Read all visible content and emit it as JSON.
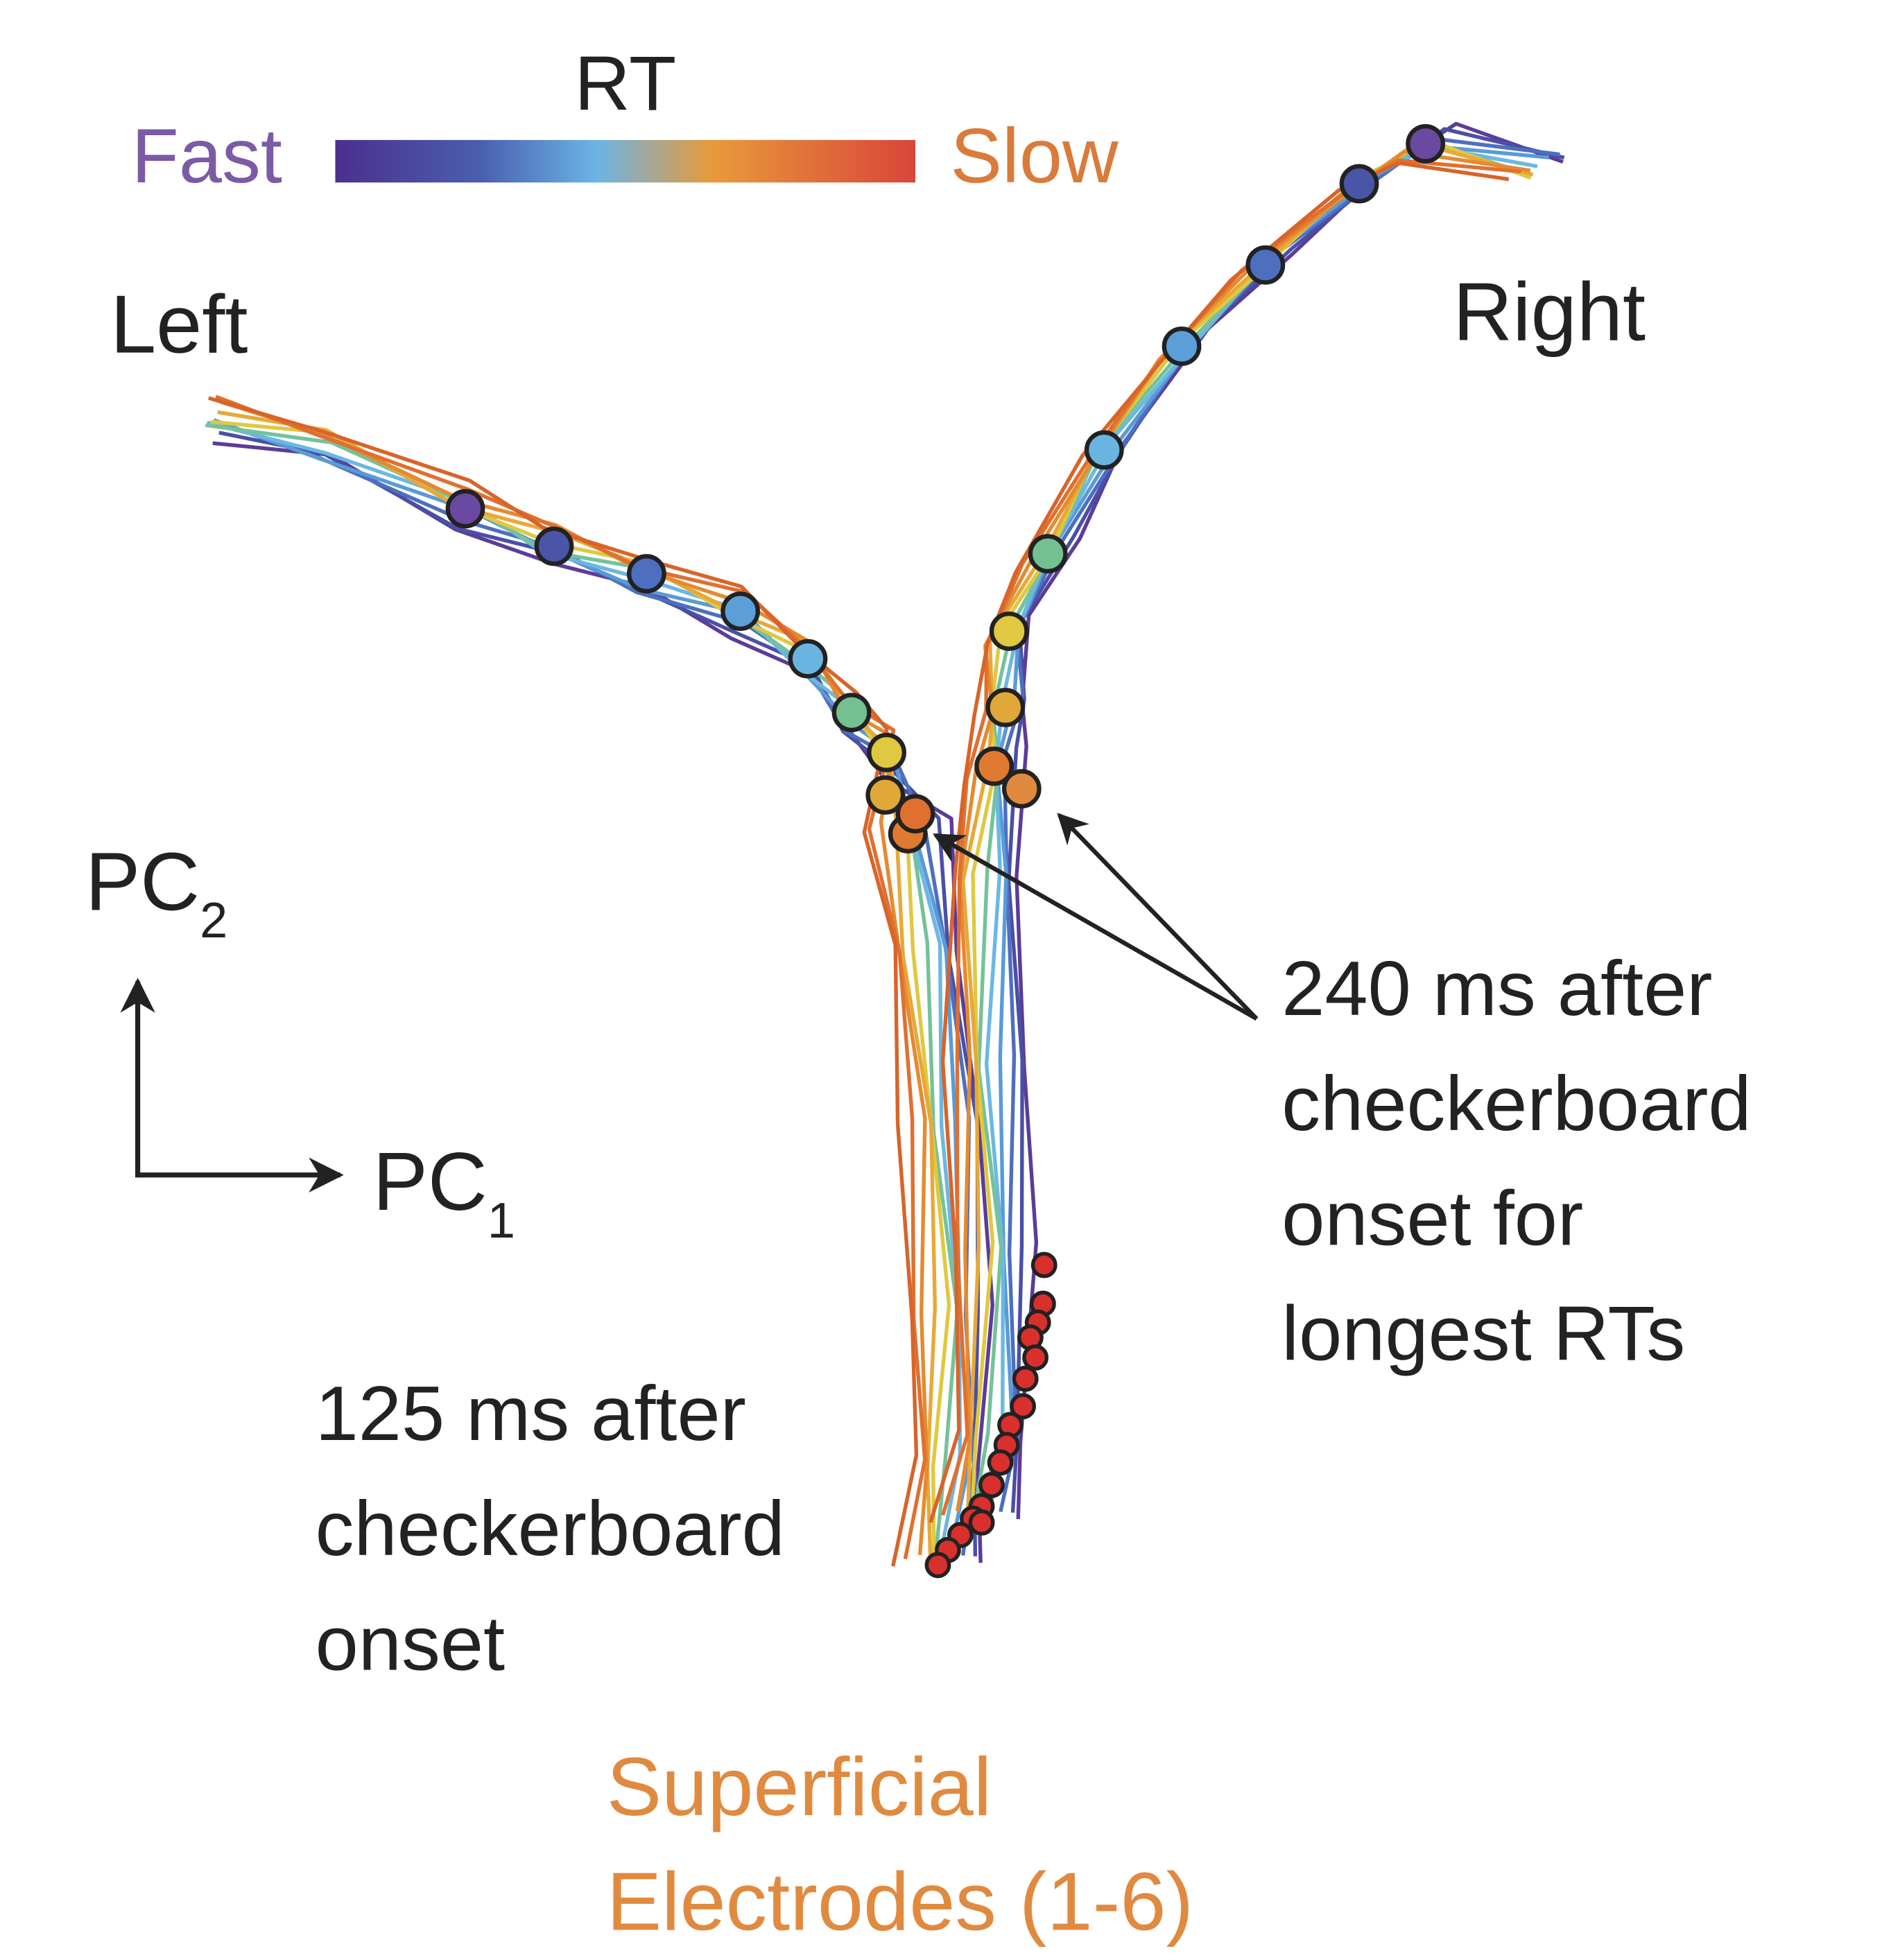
{
  "colorbar": {
    "title": "RT",
    "low": "Fast",
    "high": "Slow"
  },
  "labels": {
    "left": "Left",
    "right": "Right"
  },
  "axes": {
    "pc2": {
      "base": "PC",
      "sub": "2"
    },
    "pc1": {
      "base": "PC",
      "sub": "1"
    }
  },
  "annotations": {
    "late": [
      "240 ms after",
      "checkerboard",
      "onset for",
      "longest RTs"
    ],
    "early": [
      "125 ms after",
      "checkerboard",
      "onset"
    ]
  },
  "footer": [
    "Superficial",
    "Electrodes (1-6)"
  ]
}
